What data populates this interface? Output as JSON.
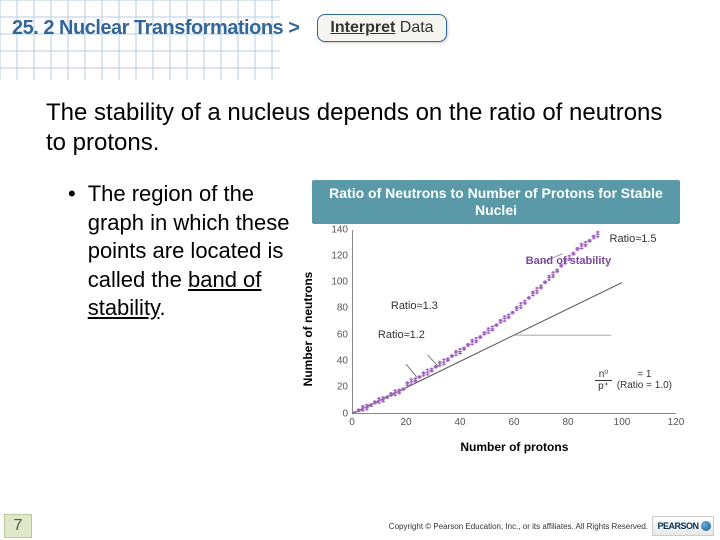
{
  "header": {
    "section_title": "25. 2 Nuclear Transformations >",
    "action_bold": "Interpret",
    "action_rest": " Data"
  },
  "body": {
    "main_text": "The stability of a nucleus depends on the ratio of neutrons to protons.",
    "bullet_pre": "The region of the graph in which these points are located is called the ",
    "bullet_u": "band of stability",
    "bullet_post": "."
  },
  "chart": {
    "title": "Ratio of Neutrons to Number of Protons for Stable Nuclei",
    "y_label": "Number of neutrons",
    "x_label": "Number of protons",
    "y_ticks": [
      0,
      20,
      40,
      60,
      80,
      100,
      120,
      140
    ],
    "y_max": 140,
    "x_ticks": [
      0,
      20,
      40,
      60,
      80,
      100,
      120
    ],
    "x_max": 120,
    "annotations": {
      "ratio15": "Ratio≈1.5",
      "band": "Band of stability",
      "ratio13": "Ratio≈1.3",
      "ratio12": "Ratio≈1.2"
    },
    "ratio_formula": {
      "num": "n⁰",
      "den": "p⁺",
      "eq": "= 1",
      "note": "(Ratio = 1.0)"
    },
    "band_color": "#a060c0",
    "ref_line_color": "#555555"
  },
  "footer": {
    "slide_num": "7",
    "copyright": "Copyright © Pearson Education, Inc., or its affiliates. All Rights Reserved.",
    "logo": "PEARSON"
  },
  "grid": {
    "line_color": "#b8cde0",
    "cell": 17
  }
}
